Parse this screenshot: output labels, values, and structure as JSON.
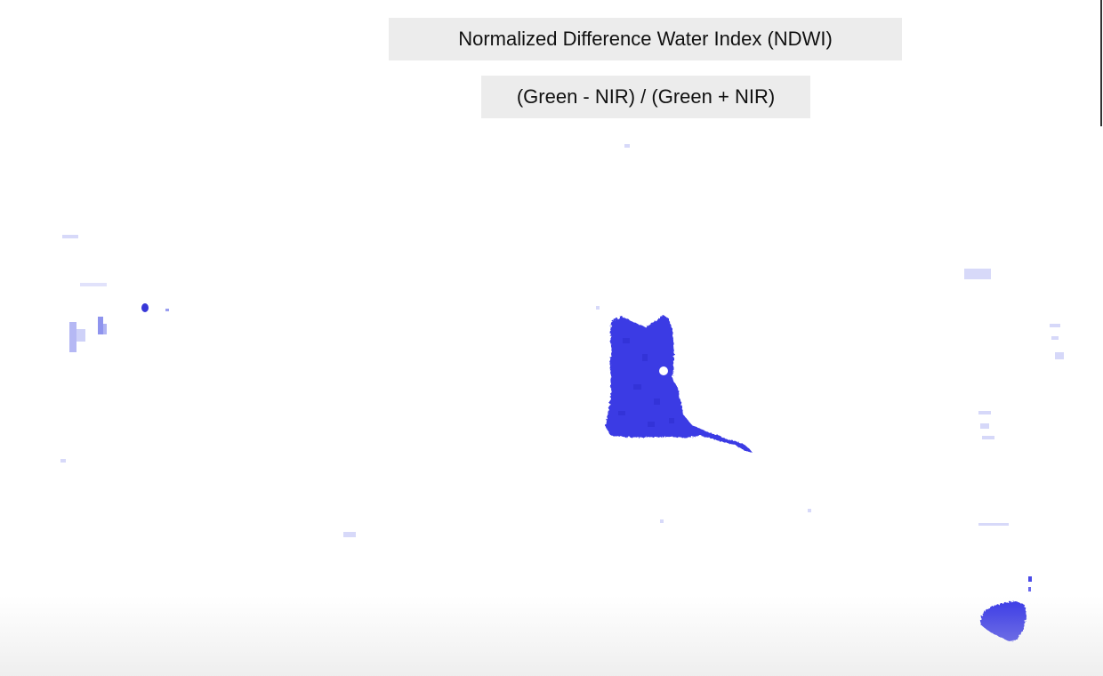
{
  "captions": {
    "title": "Normalized Difference Water Index (NDWI)",
    "formula": "(Green - NIR) / (Green + NIR)"
  },
  "map": {
    "water_color": "#3a3ae6",
    "faint_color": "#b9bdf5",
    "background_color": "#ffffff"
  }
}
